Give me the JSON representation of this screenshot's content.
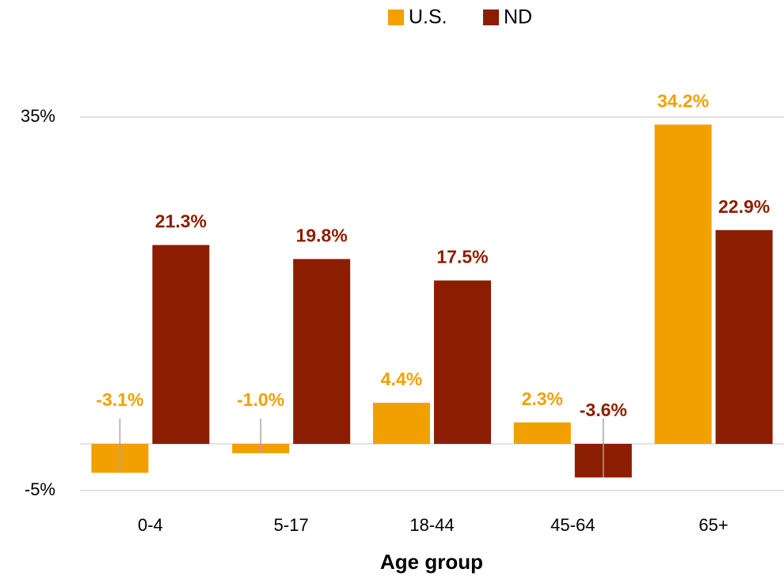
{
  "chart_data": {
    "type": "bar",
    "x_label": "Age group",
    "categories": [
      "0-4",
      "5-17",
      "18-44",
      "45-64",
      "65+"
    ],
    "series": [
      {
        "name": "U.S.",
        "color": "#f2a000",
        "values": [
          -3.1,
          -1.0,
          4.4,
          2.3,
          34.2
        ],
        "value_labels": [
          "-3.1%",
          "-1.0%",
          "4.4%",
          "2.3%",
          "34.2%"
        ]
      },
      {
        "name": "ND",
        "color": "#8b1e00",
        "values": [
          21.3,
          19.8,
          17.5,
          -3.6,
          22.9
        ],
        "value_labels": [
          "21.3%",
          "19.8%",
          "17.5%",
          "-3.6%",
          "22.9%"
        ]
      }
    ],
    "ylim": [
      -5,
      35
    ],
    "yticks": [
      {
        "value": 35,
        "label": "35%"
      },
      {
        "value": -5,
        "label": "-5%"
      }
    ],
    "grid": true,
    "legend": "top"
  }
}
